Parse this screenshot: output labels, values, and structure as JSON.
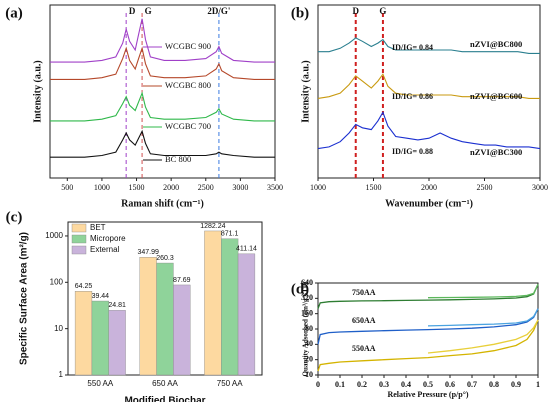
{
  "chart_data": [
    {
      "type": "line",
      "panel": "(a)",
      "xlabel": "Raman shift (cm⁻¹)",
      "ylabel": "Intensity (a.u.)",
      "xlim": [
        250,
        3500
      ],
      "xticks": [
        500,
        1000,
        1500,
        2000,
        2500,
        3000,
        3500
      ],
      "ylim": [
        0,
        10
      ],
      "x": [
        250,
        500,
        750,
        1000,
        1200,
        1300,
        1350,
        1400,
        1480,
        1530,
        1580,
        1630,
        1700,
        1900,
        2200,
        2500,
        2650,
        2690,
        2730,
        2900,
        3200,
        3500
      ],
      "series": [
        {
          "name": "WCGBC 900",
          "color": "#a040c8",
          "values": [
            6.7,
            6.7,
            6.7,
            6.8,
            7.0,
            7.8,
            8.6,
            7.9,
            7.4,
            8.3,
            9.2,
            8.0,
            7.0,
            6.8,
            6.8,
            6.9,
            7.3,
            7.6,
            7.2,
            6.8,
            6.7,
            6.7
          ]
        },
        {
          "name": "WCGBC 800",
          "color": "#b5482a",
          "values": [
            5.7,
            5.7,
            5.7,
            5.8,
            6.0,
            6.9,
            7.5,
            6.8,
            6.3,
            6.9,
            7.5,
            6.6,
            5.9,
            5.8,
            5.8,
            5.9,
            6.3,
            6.6,
            6.2,
            5.8,
            5.7,
            5.7
          ]
        },
        {
          "name": "WCGBC 700",
          "color": "#2fb84a",
          "values": [
            3.3,
            3.3,
            3.3,
            3.4,
            3.6,
            4.3,
            4.7,
            4.2,
            3.9,
            4.4,
            4.9,
            4.1,
            3.5,
            3.4,
            3.4,
            3.5,
            3.8,
            4.0,
            3.7,
            3.4,
            3.3,
            3.3
          ]
        },
        {
          "name": "BC 800",
          "color": "#111111",
          "values": [
            1.2,
            1.2,
            1.2,
            1.3,
            1.5,
            2.2,
            2.6,
            2.2,
            1.9,
            2.3,
            2.7,
            2.0,
            1.4,
            1.3,
            1.3,
            1.3,
            1.4,
            1.5,
            1.4,
            1.3,
            1.2,
            1.2
          ]
        }
      ],
      "vlines": [
        {
          "x": 1350,
          "label": "D",
          "color": "#a040c8"
        },
        {
          "x": 1580,
          "label": "G",
          "color": "#d05050"
        },
        {
          "x": 2690,
          "label": "2D/G'",
          "color": "#3a7be0"
        }
      ]
    },
    {
      "type": "line",
      "panel": "(b)",
      "xlabel": "Wavenumber (cm⁻¹)",
      "ylabel": "Intensity (a.u.)",
      "xlim": [
        1000,
        3000
      ],
      "xticks": [
        1000,
        1500,
        2000,
        2500,
        3000
      ],
      "ylim": [
        0,
        10
      ],
      "x": [
        1000,
        1100,
        1200,
        1280,
        1340,
        1400,
        1480,
        1540,
        1585,
        1630,
        1700,
        1800,
        1900,
        2000,
        2100,
        2200,
        2300,
        2400,
        2500,
        2600,
        2700,
        2800,
        2900,
        3000
      ],
      "series": [
        {
          "name": "nZVI@BC800",
          "color": "#2a7f8f",
          "values": [
            7.3,
            7.3,
            7.5,
            7.8,
            8.1,
            7.9,
            7.6,
            7.8,
            8.0,
            7.6,
            7.4,
            7.4,
            7.4,
            7.4,
            7.4,
            7.4,
            7.3,
            7.3,
            7.3,
            7.3,
            7.3,
            7.3,
            7.2,
            7.2
          ]
        },
        {
          "name": "nZVI@BC600",
          "color": "#c99a10",
          "values": [
            4.6,
            4.7,
            4.9,
            5.4,
            5.9,
            5.6,
            5.2,
            5.6,
            6.0,
            5.3,
            4.9,
            4.8,
            4.8,
            4.8,
            4.8,
            4.8,
            4.7,
            4.7,
            4.7,
            4.7,
            4.7,
            4.7,
            4.6,
            4.6
          ]
        },
        {
          "name": "nZVI@BC300",
          "color": "#1a2fd0",
          "values": [
            1.7,
            1.8,
            2.1,
            2.6,
            3.1,
            2.9,
            2.8,
            3.3,
            3.8,
            3.0,
            2.4,
            2.3,
            2.2,
            2.3,
            2.6,
            2.3,
            2.1,
            2.0,
            1.9,
            1.9,
            1.8,
            1.8,
            1.8,
            1.7
          ]
        }
      ],
      "annotations": [
        "ID/IG= 0.84",
        "ID/IG= 0.86",
        "ID/IG= 0.88"
      ],
      "vlines": [
        {
          "x": 1340,
          "label": "D",
          "color": "#d02020"
        },
        {
          "x": 1585,
          "label": "G",
          "color": "#d02020"
        }
      ]
    },
    {
      "type": "bar",
      "panel": "(c)",
      "xlabel": "Modified Biochar",
      "ylabel": "Specific Surface Area (m²/g)",
      "categories": [
        "550 AA",
        "650 AA",
        "750 AA"
      ],
      "ylim": [
        1,
        2000
      ],
      "ylog": true,
      "yticks": [
        1,
        10,
        100,
        1000
      ],
      "legend": "upper left",
      "series": [
        {
          "name": "BET",
          "color": "#fdd9a0",
          "values": [
            64.25,
            347.99,
            1282.24
          ]
        },
        {
          "name": "Micropore",
          "color": "#8fd39a",
          "values": [
            39.44,
            260.3,
            871.1
          ]
        },
        {
          "name": "External",
          "color": "#c9b3db",
          "values": [
            24.81,
            87.69,
            411.14
          ]
        }
      ]
    },
    {
      "type": "line",
      "panel": "(d)",
      "xlabel": "Relative Pressure (p/p°)",
      "ylabel": "Quantity Adsorbed (cm³/g STP)",
      "xlim": [
        0,
        1
      ],
      "xticks": [
        0,
        0.1,
        0.2,
        0.3,
        0.4,
        0.5,
        0.6,
        0.7,
        0.8,
        0.9,
        1
      ],
      "ylim": [
        10,
        640
      ],
      "ylog": true,
      "yticks": [
        10,
        20,
        40,
        80,
        160,
        320,
        640
      ],
      "x": [
        0,
        0.01,
        0.05,
        0.1,
        0.2,
        0.3,
        0.4,
        0.5,
        0.6,
        0.7,
        0.8,
        0.9,
        0.95,
        0.98,
        1
      ],
      "series": [
        {
          "color": "#2e7d32",
          "values": [
            200,
            260,
            275,
            280,
            285,
            288,
            292,
            296,
            300,
            305,
            312,
            325,
            345,
            390,
            600
          ]
        },
        {
          "color": "#5cb85c",
          "values": [
            null,
            null,
            null,
            null,
            null,
            null,
            null,
            330,
            332,
            336,
            340,
            350,
            365,
            400,
            600
          ]
        },
        {
          "color": "#1f5fc8",
          "values": [
            40,
            62,
            68,
            70,
            72,
            74,
            76,
            78,
            80,
            83,
            88,
            97,
            110,
            135,
            200
          ]
        },
        {
          "color": "#4aa3e0",
          "values": [
            null,
            null,
            null,
            null,
            null,
            null,
            null,
            92,
            94,
            97,
            100,
            105,
            115,
            140,
            200
          ]
        },
        {
          "color": "#d4b400",
          "values": [
            12,
            16,
            17,
            18,
            19,
            20,
            21,
            22,
            24,
            26,
            30,
            38,
            50,
            75,
            120
          ]
        },
        {
          "color": "#e8cf3a",
          "values": [
            null,
            null,
            null,
            null,
            null,
            null,
            null,
            27,
            30,
            34,
            40,
            50,
            62,
            85,
            120
          ]
        }
      ],
      "annotations": [
        "750AA",
        "650AA",
        "550AA"
      ]
    }
  ]
}
